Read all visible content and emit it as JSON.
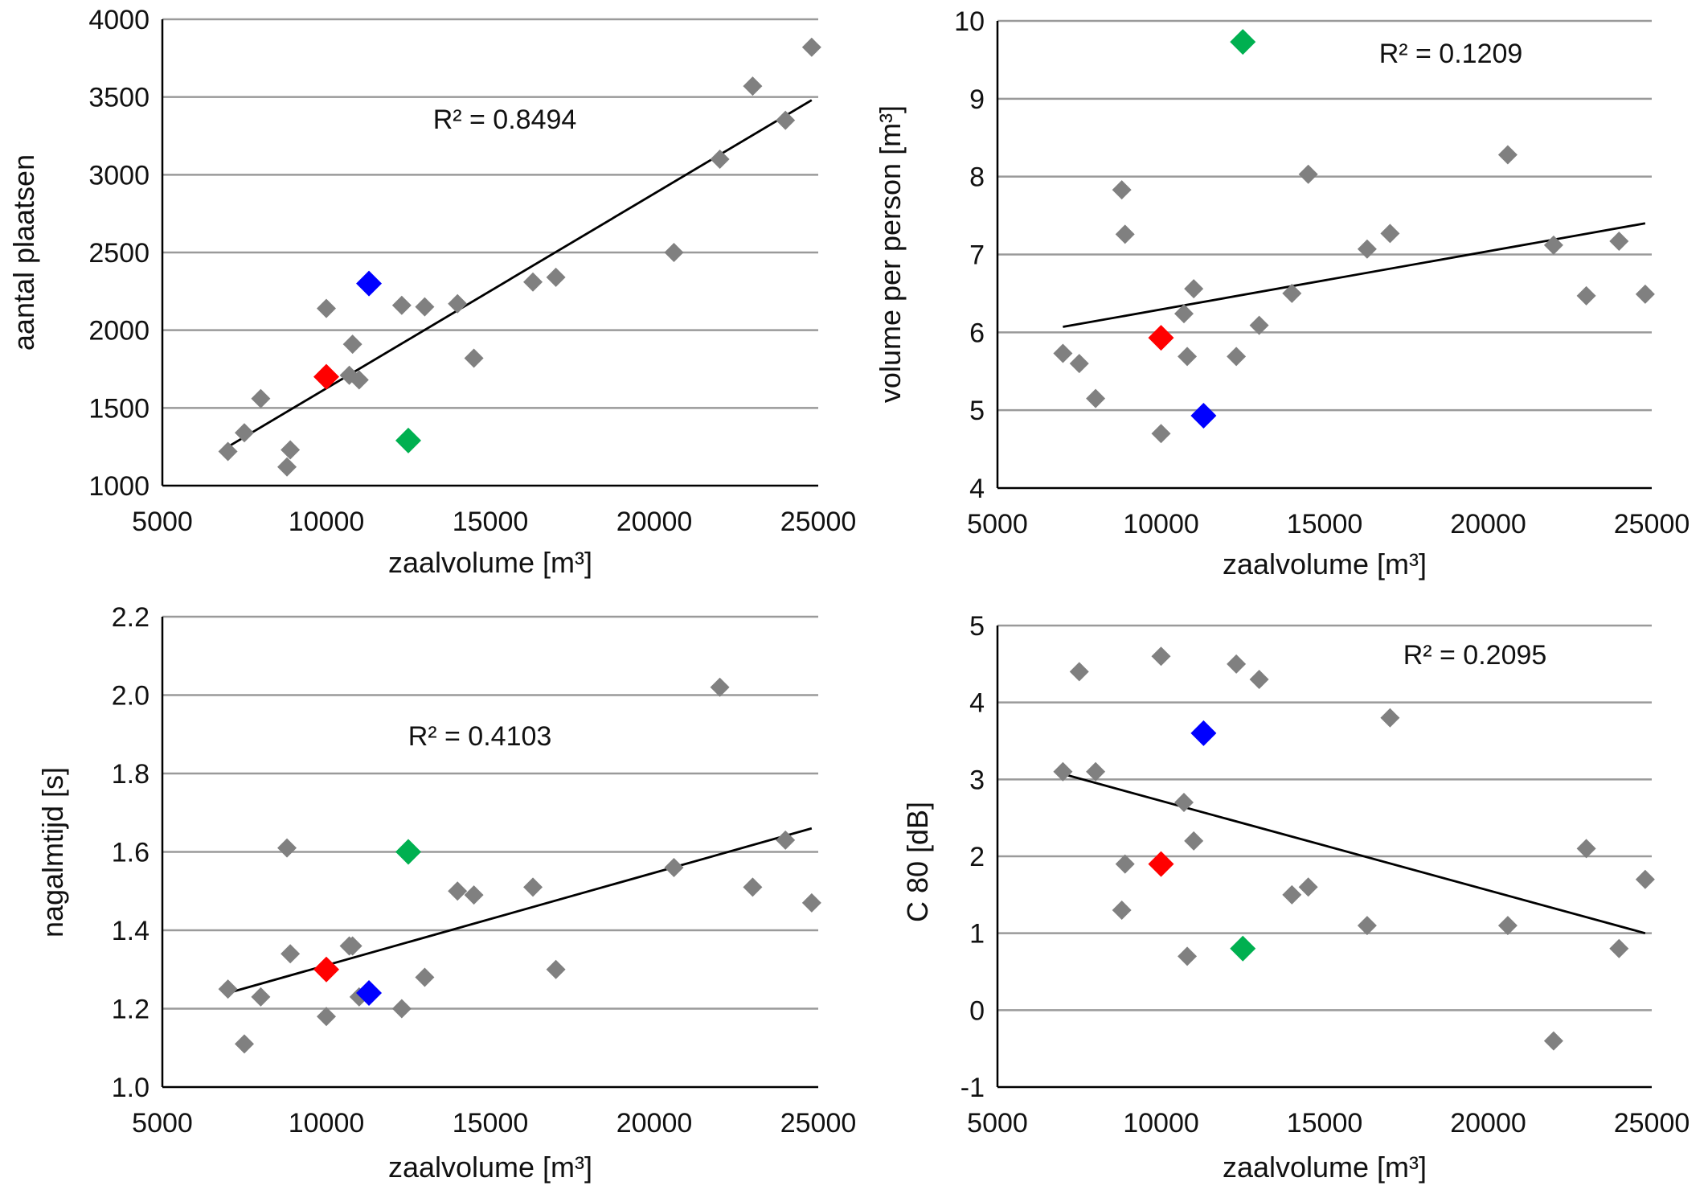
{
  "chart_data": [
    {
      "type": "scatter",
      "xlabel": "zaalvolume [m³]",
      "ylabel": "aantal plaatsen",
      "xlim": [
        5000,
        25000
      ],
      "ylim": [
        1000,
        4000
      ],
      "xticks": [
        "5000",
        "10000",
        "15000",
        "20000",
        "25000"
      ],
      "yticks": [
        "1000",
        "1500",
        "2000",
        "2500",
        "3000",
        "3500",
        "4000"
      ],
      "grid": true,
      "annotation": "R² = 0.8494",
      "trendline": {
        "x": [
          7000,
          24800
        ],
        "y": [
          1250,
          3480
        ]
      },
      "points": [
        {
          "x": 7000,
          "y": 1220,
          "color": "#808080"
        },
        {
          "x": 7500,
          "y": 1340,
          "color": "#808080"
        },
        {
          "x": 8000,
          "y": 1560,
          "color": "#808080"
        },
        {
          "x": 8800,
          "y": 1120,
          "color": "#808080"
        },
        {
          "x": 8900,
          "y": 1230,
          "color": "#808080"
        },
        {
          "x": 10000,
          "y": 2140,
          "color": "#808080"
        },
        {
          "x": 10700,
          "y": 1710,
          "color": "#808080"
        },
        {
          "x": 10800,
          "y": 1910,
          "color": "#808080"
        },
        {
          "x": 11000,
          "y": 1680,
          "color": "#808080"
        },
        {
          "x": 12300,
          "y": 2160,
          "color": "#808080"
        },
        {
          "x": 13000,
          "y": 2150,
          "color": "#808080"
        },
        {
          "x": 14000,
          "y": 2170,
          "color": "#808080"
        },
        {
          "x": 14500,
          "y": 1820,
          "color": "#808080"
        },
        {
          "x": 16300,
          "y": 2310,
          "color": "#808080"
        },
        {
          "x": 17000,
          "y": 2340,
          "color": "#808080"
        },
        {
          "x": 20600,
          "y": 2500,
          "color": "#808080"
        },
        {
          "x": 22000,
          "y": 3100,
          "color": "#808080"
        },
        {
          "x": 23000,
          "y": 3570,
          "color": "#808080"
        },
        {
          "x": 24000,
          "y": 3350,
          "color": "#808080"
        },
        {
          "x": 24800,
          "y": 3820,
          "color": "#808080"
        },
        {
          "x": 10000,
          "y": 1700,
          "color": "#ff0000"
        },
        {
          "x": 11300,
          "y": 2300,
          "color": "#0000ff"
        },
        {
          "x": 12500,
          "y": 1290,
          "color": "#00b050"
        }
      ]
    },
    {
      "type": "scatter",
      "xlabel": "zaalvolume [m³]",
      "ylabel": "volume per person [m³]",
      "xlim": [
        5000,
        25000
      ],
      "ylim": [
        4,
        10
      ],
      "xticks": [
        "5000",
        "10000",
        "15000",
        "20000",
        "25000"
      ],
      "yticks": [
        "4",
        "5",
        "6",
        "7",
        "8",
        "9",
        "10"
      ],
      "grid": true,
      "annotation": "R² = 0.1209",
      "trendline": {
        "x": [
          7000,
          24800
        ],
        "y": [
          6.07,
          7.4
        ]
      },
      "points": [
        {
          "x": 7000,
          "y": 5.73,
          "color": "#808080"
        },
        {
          "x": 7500,
          "y": 5.6,
          "color": "#808080"
        },
        {
          "x": 8000,
          "y": 5.15,
          "color": "#808080"
        },
        {
          "x": 8800,
          "y": 7.83,
          "color": "#808080"
        },
        {
          "x": 8900,
          "y": 7.26,
          "color": "#808080"
        },
        {
          "x": 10000,
          "y": 4.7,
          "color": "#808080"
        },
        {
          "x": 10700,
          "y": 6.24,
          "color": "#808080"
        },
        {
          "x": 10800,
          "y": 5.69,
          "color": "#808080"
        },
        {
          "x": 11000,
          "y": 6.56,
          "color": "#808080"
        },
        {
          "x": 12300,
          "y": 5.69,
          "color": "#808080"
        },
        {
          "x": 13000,
          "y": 6.09,
          "color": "#808080"
        },
        {
          "x": 14000,
          "y": 6.5,
          "color": "#808080"
        },
        {
          "x": 14500,
          "y": 8.03,
          "color": "#808080"
        },
        {
          "x": 16300,
          "y": 7.07,
          "color": "#808080"
        },
        {
          "x": 17000,
          "y": 7.27,
          "color": "#808080"
        },
        {
          "x": 20600,
          "y": 8.28,
          "color": "#808080"
        },
        {
          "x": 22000,
          "y": 7.12,
          "color": "#808080"
        },
        {
          "x": 23000,
          "y": 6.47,
          "color": "#808080"
        },
        {
          "x": 24000,
          "y": 7.17,
          "color": "#808080"
        },
        {
          "x": 24800,
          "y": 6.49,
          "color": "#808080"
        },
        {
          "x": 10000,
          "y": 5.93,
          "color": "#ff0000"
        },
        {
          "x": 11300,
          "y": 4.93,
          "color": "#0000ff"
        },
        {
          "x": 12500,
          "y": 9.73,
          "color": "#00b050"
        }
      ]
    },
    {
      "type": "scatter",
      "xlabel": "zaalvolume [m³]",
      "ylabel": "nagalmtijd [s]",
      "xlim": [
        5000,
        25000
      ],
      "ylim": [
        1.0,
        2.2
      ],
      "xticks": [
        "5000",
        "10000",
        "15000",
        "20000",
        "25000"
      ],
      "yticks": [
        "1.0",
        "1.2",
        "1.4",
        "1.6",
        "1.8",
        "2.0",
        "2.2"
      ],
      "grid": true,
      "annotation": "R² = 0.4103",
      "trendline": {
        "x": [
          7000,
          24800
        ],
        "y": [
          1.24,
          1.66
        ]
      },
      "points": [
        {
          "x": 7000,
          "y": 1.25,
          "color": "#808080"
        },
        {
          "x": 7500,
          "y": 1.11,
          "color": "#808080"
        },
        {
          "x": 8000,
          "y": 1.23,
          "color": "#808080"
        },
        {
          "x": 8800,
          "y": 1.61,
          "color": "#808080"
        },
        {
          "x": 8900,
          "y": 1.34,
          "color": "#808080"
        },
        {
          "x": 10000,
          "y": 1.18,
          "color": "#808080"
        },
        {
          "x": 10700,
          "y": 1.36,
          "color": "#808080"
        },
        {
          "x": 10800,
          "y": 1.36,
          "color": "#808080"
        },
        {
          "x": 11000,
          "y": 1.23,
          "color": "#808080"
        },
        {
          "x": 12300,
          "y": 1.2,
          "color": "#808080"
        },
        {
          "x": 13000,
          "y": 1.28,
          "color": "#808080"
        },
        {
          "x": 14000,
          "y": 1.5,
          "color": "#808080"
        },
        {
          "x": 14500,
          "y": 1.49,
          "color": "#808080"
        },
        {
          "x": 16300,
          "y": 1.51,
          "color": "#808080"
        },
        {
          "x": 17000,
          "y": 1.3,
          "color": "#808080"
        },
        {
          "x": 20600,
          "y": 1.56,
          "color": "#808080"
        },
        {
          "x": 22000,
          "y": 2.02,
          "color": "#808080"
        },
        {
          "x": 23000,
          "y": 1.51,
          "color": "#808080"
        },
        {
          "x": 24000,
          "y": 1.63,
          "color": "#808080"
        },
        {
          "x": 24800,
          "y": 1.47,
          "color": "#808080"
        },
        {
          "x": 10000,
          "y": 1.3,
          "color": "#ff0000"
        },
        {
          "x": 11300,
          "y": 1.24,
          "color": "#0000ff"
        },
        {
          "x": 12500,
          "y": 1.6,
          "color": "#00b050"
        }
      ]
    },
    {
      "type": "scatter",
      "xlabel": "zaalvolume [m³]",
      "ylabel": "C 80 [dB]",
      "xlim": [
        5000,
        25000
      ],
      "ylim": [
        -1,
        5
      ],
      "xticks": [
        "5000",
        "10000",
        "15000",
        "20000",
        "25000"
      ],
      "yticks": [
        "-1",
        "0",
        "1",
        "2",
        "3",
        "4",
        "5"
      ],
      "grid": true,
      "annotation": "R² = 0.2095",
      "trendline": {
        "x": [
          7000,
          24800
        ],
        "y": [
          3.07,
          1.0
        ]
      },
      "points": [
        {
          "x": 7000,
          "y": 3.1,
          "color": "#808080"
        },
        {
          "x": 7500,
          "y": 4.4,
          "color": "#808080"
        },
        {
          "x": 8000,
          "y": 3.1,
          "color": "#808080"
        },
        {
          "x": 8800,
          "y": 1.3,
          "color": "#808080"
        },
        {
          "x": 8900,
          "y": 1.9,
          "color": "#808080"
        },
        {
          "x": 10000,
          "y": 4.6,
          "color": "#808080"
        },
        {
          "x": 10700,
          "y": 2.7,
          "color": "#808080"
        },
        {
          "x": 10800,
          "y": 0.7,
          "color": "#808080"
        },
        {
          "x": 11000,
          "y": 2.2,
          "color": "#808080"
        },
        {
          "x": 12300,
          "y": 4.5,
          "color": "#808080"
        },
        {
          "x": 13000,
          "y": 4.3,
          "color": "#808080"
        },
        {
          "x": 14000,
          "y": 1.5,
          "color": "#808080"
        },
        {
          "x": 14500,
          "y": 1.6,
          "color": "#808080"
        },
        {
          "x": 16300,
          "y": 1.1,
          "color": "#808080"
        },
        {
          "x": 17000,
          "y": 3.8,
          "color": "#808080"
        },
        {
          "x": 20600,
          "y": 1.1,
          "color": "#808080"
        },
        {
          "x": 22000,
          "y": -0.4,
          "color": "#808080"
        },
        {
          "x": 23000,
          "y": 2.1,
          "color": "#808080"
        },
        {
          "x": 24000,
          "y": 0.8,
          "color": "#808080"
        },
        {
          "x": 24800,
          "y": 1.7,
          "color": "#808080"
        },
        {
          "x": 10000,
          "y": 1.9,
          "color": "#ff0000"
        },
        {
          "x": 11300,
          "y": 3.6,
          "color": "#0000ff"
        },
        {
          "x": 12500,
          "y": 0.8,
          "color": "#00b050"
        }
      ]
    }
  ]
}
